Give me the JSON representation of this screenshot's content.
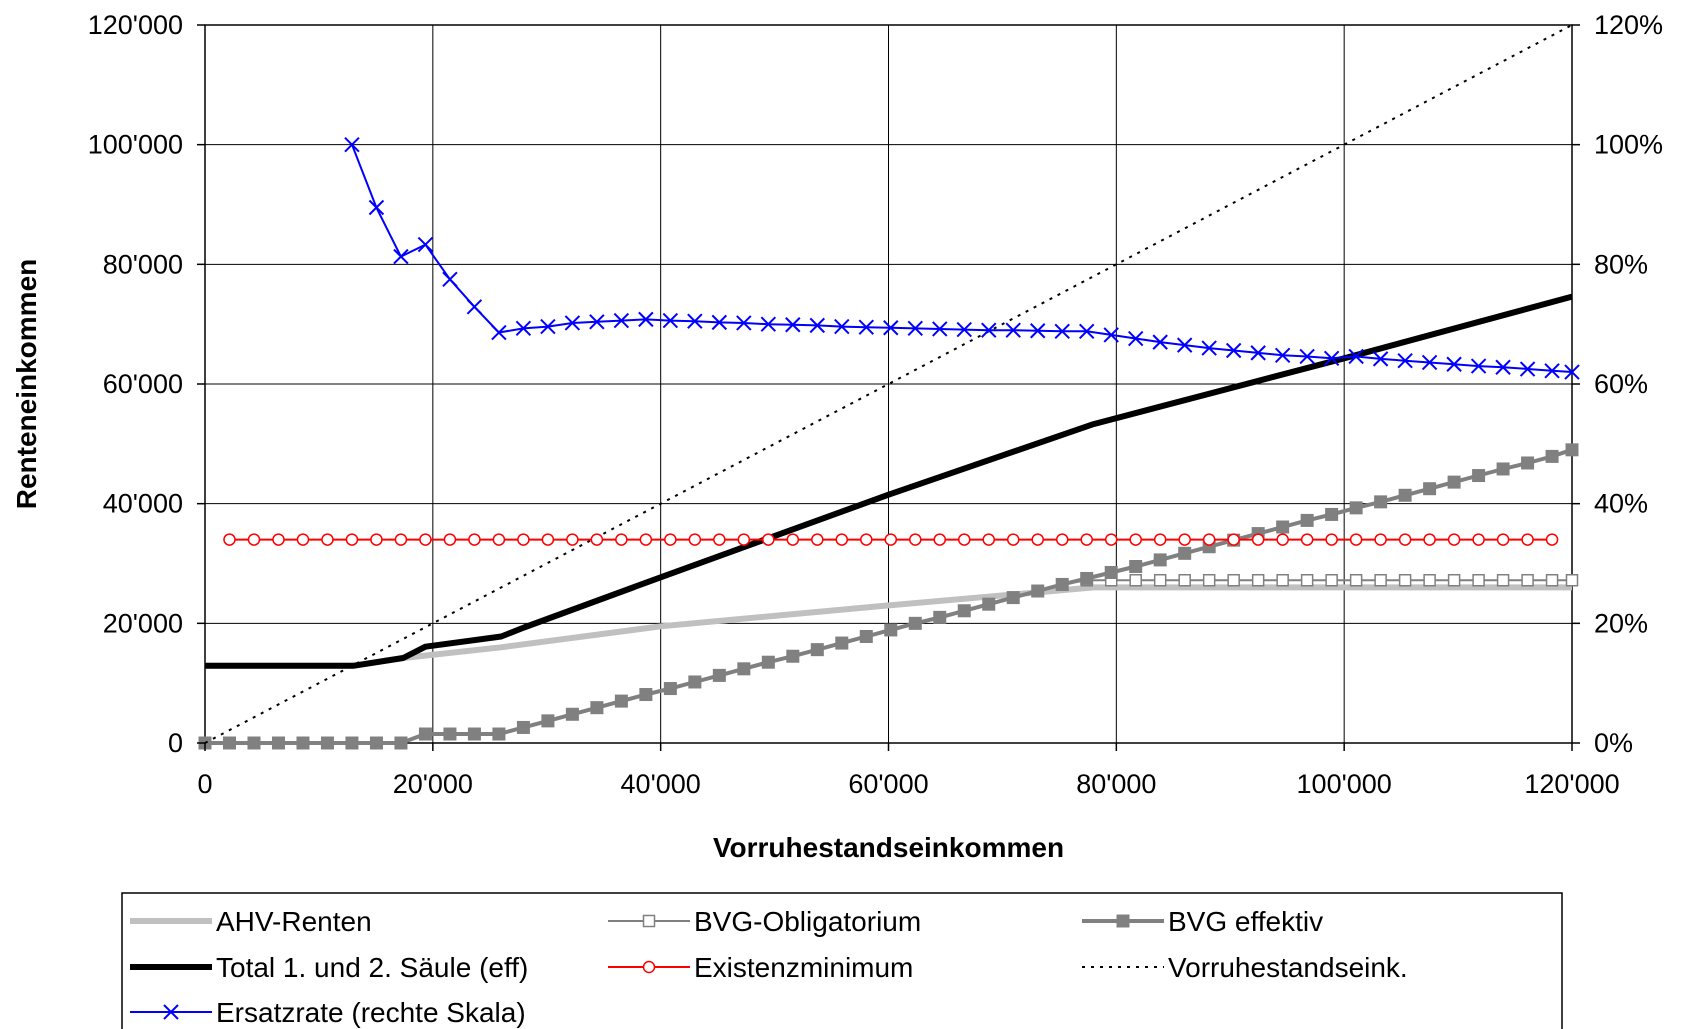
{
  "chart_data": {
    "type": "line",
    "title": "",
    "xlabel": "Vorruhestandseinkommen",
    "ylabel": "Renteneinkommen",
    "xlim": [
      0,
      120000
    ],
    "ylim": [
      0,
      120000
    ],
    "y2lim": [
      0,
      120
    ],
    "grid": true,
    "legend_position": "bottom",
    "x_ticks": [
      "0",
      "20'000",
      "40'000",
      "60'000",
      "80'000",
      "100'000",
      "120'000"
    ],
    "x_tick_values": [
      0,
      20000,
      40000,
      60000,
      80000,
      100000,
      120000
    ],
    "y_ticks": [
      "0",
      "20'000",
      "40'000",
      "60'000",
      "80'000",
      "100'000",
      "120'000"
    ],
    "y_tick_values": [
      0,
      20000,
      40000,
      60000,
      80000,
      100000,
      120000
    ],
    "y2_ticks": [
      "0%",
      "20%",
      "40%",
      "60%",
      "80%",
      "100%",
      "120%"
    ],
    "y2_tick_values": [
      0,
      20,
      40,
      60,
      80,
      100,
      120
    ],
    "series": [
      {
        "name": "AHV-Renten",
        "axis": "left",
        "color": "#c0c0c0",
        "style": "thick",
        "x": [
          0,
          13000,
          17400,
          26000,
          40000,
          60000,
          78000,
          120000
        ],
        "y": [
          12900,
          12900,
          14200,
          16000,
          19500,
          23000,
          26000,
          26000
        ]
      },
      {
        "name": "BVG-Obligatorium",
        "axis": "left",
        "color": "#808080",
        "style": "hollow-square",
        "x": [
          0,
          2150,
          4300,
          6450,
          8600,
          10750,
          12900,
          15050,
          17200,
          19350,
          21500,
          23650,
          25800,
          27950,
          30100,
          32250,
          34400,
          36550,
          38700,
          40850,
          43000,
          45150,
          47300,
          49450,
          51600,
          53750,
          55900,
          58050,
          60200,
          62350,
          64500,
          66650,
          68800,
          70950,
          73100,
          75250,
          77400,
          79550,
          81700,
          83850,
          86000,
          88150,
          90300,
          92450,
          94600,
          96750,
          98900,
          101050,
          103200,
          105350,
          107500,
          109650,
          111800,
          113950,
          116100,
          118250,
          120000
        ],
        "y": [
          0,
          0,
          0,
          0,
          0,
          0,
          0,
          0,
          0,
          1500,
          1500,
          1500,
          1500,
          2600,
          3700,
          4800,
          5900,
          7000,
          8100,
          9100,
          10200,
          11300,
          12400,
          13500,
          14500,
          15600,
          16700,
          17800,
          18900,
          20000,
          21000,
          22100,
          23200,
          24300,
          25400,
          26500,
          27200,
          27200,
          27200,
          27200,
          27200,
          27200,
          27200,
          27200,
          27200,
          27200,
          27200,
          27200,
          27200,
          27200,
          27200,
          27200,
          27200,
          27200,
          27200,
          27200,
          27200
        ]
      },
      {
        "name": "BVG effektiv",
        "axis": "left",
        "color": "#808080",
        "style": "filled-square",
        "x": [
          0,
          2150,
          4300,
          6450,
          8600,
          10750,
          12900,
          15050,
          17200,
          19350,
          21500,
          23650,
          25800,
          27950,
          30100,
          32250,
          34400,
          36550,
          38700,
          40850,
          43000,
          45150,
          47300,
          49450,
          51600,
          53750,
          55900,
          58050,
          60200,
          62350,
          64500,
          66650,
          68800,
          70950,
          73100,
          75250,
          77400,
          79550,
          81700,
          83850,
          86000,
          88150,
          90300,
          92450,
          94600,
          96750,
          98900,
          101050,
          103200,
          105350,
          107500,
          109650,
          111800,
          113950,
          116100,
          118250,
          120000
        ],
        "y": [
          0,
          0,
          0,
          0,
          0,
          0,
          0,
          0,
          0,
          1500,
          1500,
          1500,
          1500,
          2600,
          3700,
          4800,
          5900,
          7000,
          8100,
          9100,
          10200,
          11300,
          12400,
          13500,
          14500,
          15600,
          16700,
          17800,
          18900,
          20000,
          21000,
          22100,
          23200,
          24300,
          25400,
          26500,
          27500,
          28500,
          29500,
          30600,
          31700,
          32800,
          33900,
          35000,
          36100,
          37200,
          38200,
          39300,
          40300,
          41400,
          42500,
          43600,
          44700,
          45800,
          46800,
          47900,
          49000
        ]
      },
      {
        "name": "Total 1. und 2. Säule (eff)",
        "axis": "left",
        "color": "#000000",
        "style": "thick",
        "x": [
          0,
          13000,
          17400,
          19350,
          26000,
          28000,
          40000,
          60000,
          78000,
          100000,
          120000
        ],
        "y": [
          12900,
          12900,
          14200,
          16100,
          17800,
          19300,
          27700,
          41500,
          53300,
          64300,
          74600
        ]
      },
      {
        "name": "Existenzminimum",
        "axis": "left",
        "color": "#ff0000",
        "style": "hollow-circle",
        "x": [
          2150,
          4300,
          6450,
          8600,
          10750,
          12900,
          15050,
          17200,
          19350,
          21500,
          23650,
          25800,
          27950,
          30100,
          32250,
          34400,
          36550,
          38700,
          40850,
          43000,
          45150,
          47300,
          49450,
          51600,
          53750,
          55900,
          58050,
          60200,
          62350,
          64500,
          66650,
          68800,
          70950,
          73100,
          75250,
          77400,
          79550,
          81700,
          83850,
          86000,
          88150,
          90300,
          92450,
          94600,
          96750,
          98900,
          101050,
          103200,
          105350,
          107500,
          109650,
          111800,
          113950,
          116100,
          118250
        ],
        "y": [
          34000,
          34000,
          34000,
          34000,
          34000,
          34000,
          34000,
          34000,
          34000,
          34000,
          34000,
          34000,
          34000,
          34000,
          34000,
          34000,
          34000,
          34000,
          34000,
          34000,
          34000,
          34000,
          34000,
          34000,
          34000,
          34000,
          34000,
          34000,
          34000,
          34000,
          34000,
          34000,
          34000,
          34000,
          34000,
          34000,
          34000,
          34000,
          34000,
          34000,
          34000,
          34000,
          34000,
          34000,
          34000,
          34000,
          34000,
          34000,
          34000,
          34000,
          34000,
          34000,
          34000,
          34000,
          34000
        ]
      },
      {
        "name": "Vorruhestandseink.",
        "axis": "left",
        "color": "#000000",
        "style": "dotted",
        "x": [
          0,
          120000
        ],
        "y": [
          0,
          120000
        ]
      },
      {
        "name": "Ersatzrate (rechte Skala)",
        "axis": "right",
        "color": "#0000ff",
        "style": "x-marker",
        "x": [
          12900,
          15050,
          17200,
          19350,
          21500,
          23650,
          25800,
          27950,
          30100,
          32250,
          34400,
          36550,
          38700,
          40850,
          43000,
          45150,
          47300,
          49450,
          51600,
          53750,
          55900,
          58050,
          60200,
          62350,
          64500,
          66650,
          68800,
          70950,
          73100,
          75250,
          77400,
          79550,
          81700,
          83850,
          86000,
          88150,
          90300,
          92450,
          94600,
          96750,
          98900,
          101050,
          103200,
          105350,
          107500,
          109650,
          111800,
          113950,
          116100,
          118250,
          120000
        ],
        "y": [
          100,
          89.5,
          81.3,
          83.3,
          77.5,
          72.9,
          68.6,
          69.3,
          69.6,
          70.2,
          70.4,
          70.6,
          70.8,
          70.6,
          70.5,
          70.3,
          70.2,
          70.0,
          69.9,
          69.8,
          69.6,
          69.5,
          69.4,
          69.3,
          69.2,
          69.1,
          69.0,
          69.0,
          68.9,
          68.8,
          68.8,
          68.2,
          67.6,
          67.0,
          66.5,
          66.0,
          65.6,
          65.2,
          64.8,
          64.6,
          64.3,
          64.6,
          64.2,
          63.9,
          63.6,
          63.3,
          63.0,
          62.8,
          62.5,
          62.2,
          62.0
        ]
      }
    ],
    "legend": [
      [
        "AHV-Renten",
        "BVG-Obligatorium",
        "BVG effektiv"
      ],
      [
        "Total 1. und 2. Säule (eff)",
        "Existenzminimum",
        "Vorruhestandseink."
      ],
      [
        "Ersatzrate (rechte Skala)"
      ]
    ]
  }
}
